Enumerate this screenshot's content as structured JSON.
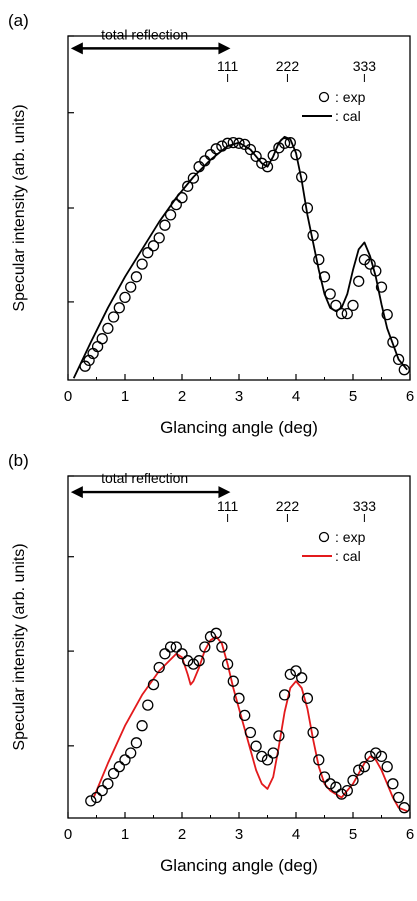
{
  "chart_data": [
    {
      "type": "scatter",
      "panel_label": "(a)",
      "xlabel": "Glancing angle (deg)",
      "ylabel": "Specular intensity (arb. units)",
      "xlim": [
        0,
        6
      ],
      "ylim": [
        0,
        1
      ],
      "x_ticks": [
        "0",
        "1",
        "2",
        "3",
        "4",
        "5",
        "6"
      ],
      "x_tick_values": [
        0,
        1,
        2,
        3,
        4,
        5,
        6
      ],
      "y_tick_values": [
        0.227,
        0.5,
        0.777,
        1.0
      ],
      "reflections": [
        {
          "label": "111",
          "x": 2.8
        },
        {
          "label": "222",
          "x": 3.85
        },
        {
          "label": "333",
          "x": 5.2
        }
      ],
      "annotation": {
        "text": "total reflection",
        "x_start": 0.05,
        "x_end": 2.85,
        "y": 0.964
      },
      "legend": {
        "placement": "top-right",
        "exp_label": ": exp",
        "cal_label": ": cal"
      },
      "cal_color": "#000000",
      "exp_series": {
        "name": "exp",
        "x": [
          0.3,
          0.37,
          0.44,
          0.52,
          0.6,
          0.7,
          0.8,
          0.9,
          1.0,
          1.1,
          1.2,
          1.3,
          1.4,
          1.5,
          1.6,
          1.7,
          1.8,
          1.9,
          2.0,
          2.1,
          2.2,
          2.3,
          2.4,
          2.5,
          2.6,
          2.7,
          2.8,
          2.9,
          3.0,
          3.1,
          3.2,
          3.3,
          3.4,
          3.5,
          3.6,
          3.7,
          3.8,
          3.9,
          4.0,
          4.1,
          4.2,
          4.3,
          4.4,
          4.5,
          4.6,
          4.7,
          4.8,
          4.9,
          5.0,
          5.1,
          5.2,
          5.3,
          5.4,
          5.5,
          5.6,
          5.7,
          5.8,
          5.9
        ],
        "y": [
          0.04,
          0.057,
          0.077,
          0.097,
          0.12,
          0.15,
          0.183,
          0.21,
          0.24,
          0.27,
          0.3,
          0.337,
          0.37,
          0.39,
          0.413,
          0.45,
          0.48,
          0.51,
          0.53,
          0.563,
          0.587,
          0.62,
          0.637,
          0.655,
          0.672,
          0.68,
          0.688,
          0.69,
          0.688,
          0.685,
          0.67,
          0.65,
          0.63,
          0.62,
          0.653,
          0.675,
          0.688,
          0.69,
          0.655,
          0.59,
          0.5,
          0.42,
          0.35,
          0.3,
          0.25,
          0.217,
          0.193,
          0.193,
          0.217,
          0.287,
          0.35,
          0.337,
          0.317,
          0.27,
          0.19,
          0.11,
          0.06,
          0.03
        ]
      },
      "cal_series": {
        "name": "cal",
        "x": [
          0.1,
          0.4,
          0.7,
          1.0,
          1.3,
          1.6,
          1.9,
          2.2,
          2.5,
          2.8,
          3.0,
          3.2,
          3.4,
          3.5,
          3.6,
          3.7,
          3.8,
          3.9,
          4.0,
          4.1,
          4.2,
          4.3,
          4.4,
          4.5,
          4.6,
          4.7,
          4.8,
          4.9,
          5.0,
          5.1,
          5.2,
          5.3,
          5.4,
          5.5,
          5.6,
          5.8,
          5.95
        ],
        "y": [
          0.005,
          0.11,
          0.21,
          0.3,
          0.38,
          0.46,
          0.53,
          0.59,
          0.64,
          0.68,
          0.69,
          0.67,
          0.63,
          0.62,
          0.65,
          0.69,
          0.707,
          0.7,
          0.66,
          0.58,
          0.48,
          0.4,
          0.32,
          0.25,
          0.21,
          0.2,
          0.21,
          0.25,
          0.32,
          0.38,
          0.4,
          0.36,
          0.3,
          0.22,
          0.15,
          0.06,
          0.03
        ]
      }
    },
    {
      "type": "scatter",
      "panel_label": "(b)",
      "xlabel": "Glancing angle (deg)",
      "ylabel": "Specular intensity (arb. units)",
      "xlim": [
        0,
        6
      ],
      "ylim": [
        0,
        1
      ],
      "x_ticks": [
        "0",
        "1",
        "2",
        "3",
        "4",
        "5",
        "6"
      ],
      "x_tick_values": [
        0,
        1,
        2,
        3,
        4,
        5,
        6
      ],
      "y_tick_values": [
        0.211,
        0.488,
        0.764,
        1.0
      ],
      "reflections": [
        {
          "label": "111",
          "x": 2.8
        },
        {
          "label": "222",
          "x": 3.85
        },
        {
          "label": "333",
          "x": 5.2
        }
      ],
      "annotation": {
        "text": "total reflection",
        "x_start": 0.05,
        "x_end": 2.85,
        "y": 0.953
      },
      "legend": {
        "placement": "top-right",
        "exp_label": ": exp",
        "cal_label": ": cal"
      },
      "cal_color": "#e31a1c",
      "exp_series": {
        "name": "exp",
        "x": [
          0.4,
          0.5,
          0.6,
          0.7,
          0.8,
          0.9,
          1.0,
          1.1,
          1.2,
          1.3,
          1.4,
          1.5,
          1.6,
          1.7,
          1.8,
          1.9,
          2.0,
          2.1,
          2.2,
          2.3,
          2.4,
          2.5,
          2.6,
          2.7,
          2.8,
          2.9,
          3.0,
          3.1,
          3.2,
          3.3,
          3.4,
          3.5,
          3.6,
          3.7,
          3.8,
          3.9,
          4.0,
          4.1,
          4.2,
          4.3,
          4.4,
          4.5,
          4.6,
          4.7,
          4.8,
          4.9,
          5.0,
          5.1,
          5.2,
          5.3,
          5.4,
          5.5,
          5.6,
          5.7,
          5.8,
          5.9
        ],
        "y": [
          0.05,
          0.06,
          0.08,
          0.1,
          0.13,
          0.15,
          0.17,
          0.19,
          0.22,
          0.27,
          0.33,
          0.39,
          0.44,
          0.48,
          0.5,
          0.5,
          0.48,
          0.46,
          0.45,
          0.46,
          0.5,
          0.53,
          0.54,
          0.5,
          0.45,
          0.4,
          0.35,
          0.3,
          0.25,
          0.21,
          0.18,
          0.17,
          0.19,
          0.24,
          0.36,
          0.42,
          0.43,
          0.41,
          0.35,
          0.25,
          0.17,
          0.12,
          0.1,
          0.09,
          0.07,
          0.08,
          0.11,
          0.14,
          0.15,
          0.18,
          0.19,
          0.18,
          0.15,
          0.1,
          0.06,
          0.03
        ]
      },
      "cal_series": {
        "name": "cal",
        "x": [
          0.45,
          0.7,
          1.0,
          1.3,
          1.6,
          1.9,
          2.0,
          2.1,
          2.15,
          2.2,
          2.3,
          2.4,
          2.5,
          2.6,
          2.7,
          2.8,
          2.9,
          3.0,
          3.1,
          3.2,
          3.3,
          3.4,
          3.5,
          3.6,
          3.7,
          3.8,
          3.9,
          4.0,
          4.1,
          4.2,
          4.3,
          4.4,
          4.5,
          4.6,
          4.7,
          4.8,
          4.9,
          5.0,
          5.1,
          5.2,
          5.3,
          5.4,
          5.5,
          5.6,
          5.7,
          5.8,
          5.95
        ],
        "y": [
          0.06,
          0.16,
          0.27,
          0.36,
          0.43,
          0.48,
          0.47,
          0.42,
          0.39,
          0.4,
          0.44,
          0.49,
          0.52,
          0.53,
          0.51,
          0.45,
          0.38,
          0.32,
          0.26,
          0.2,
          0.14,
          0.1,
          0.085,
          0.12,
          0.21,
          0.31,
          0.38,
          0.4,
          0.38,
          0.32,
          0.23,
          0.15,
          0.1,
          0.08,
          0.07,
          0.06,
          0.08,
          0.1,
          0.13,
          0.16,
          0.18,
          0.17,
          0.14,
          0.1,
          0.06,
          0.03,
          0.02
        ]
      }
    }
  ]
}
